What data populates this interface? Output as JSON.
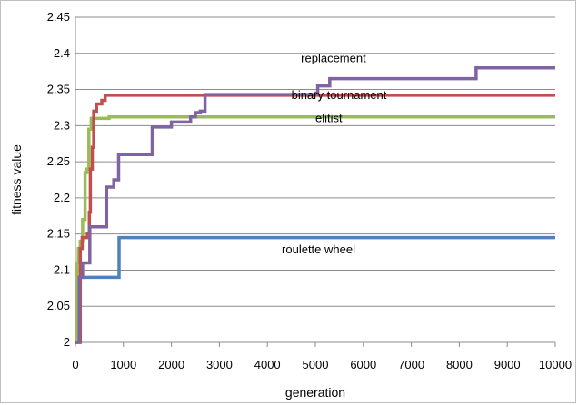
{
  "chart_data": {
    "type": "line",
    "xlabel": "generation",
    "ylabel": "fitness value",
    "xlim": [
      0,
      10000
    ],
    "ylim": [
      2,
      2.45
    ],
    "x_ticks": [
      "0",
      "1000",
      "2000",
      "3000",
      "4000",
      "5000",
      "6000",
      "7000",
      "8000",
      "9000",
      "10000"
    ],
    "y_ticks": [
      "2",
      "2.05",
      "2.1",
      "2.15",
      "2.2",
      "2.25",
      "2.3",
      "2.35",
      "2.4",
      "2.45"
    ],
    "grid": "horizontal",
    "legend": "none",
    "series": [
      {
        "name": "roulette wheel",
        "color": "#4f81bd",
        "points": [
          [
            0,
            2.0
          ],
          [
            20,
            2.09
          ],
          [
            900,
            2.09
          ],
          [
            910,
            2.145
          ],
          [
            10000,
            2.145
          ]
        ]
      },
      {
        "name": "elitist",
        "color": "#9bbb59",
        "points": [
          [
            0,
            2.0
          ],
          [
            30,
            2.11
          ],
          [
            60,
            2.13
          ],
          [
            100,
            2.14
          ],
          [
            150,
            2.17
          ],
          [
            200,
            2.235
          ],
          [
            240,
            2.24
          ],
          [
            280,
            2.295
          ],
          [
            330,
            2.31
          ],
          [
            700,
            2.312
          ],
          [
            10000,
            2.312
          ]
        ]
      },
      {
        "name": "binary tournament",
        "color": "#c0504d",
        "points": [
          [
            0,
            2.0
          ],
          [
            70,
            2.0
          ],
          [
            100,
            2.13
          ],
          [
            140,
            2.145
          ],
          [
            250,
            2.15
          ],
          [
            290,
            2.18
          ],
          [
            310,
            2.24
          ],
          [
            350,
            2.27
          ],
          [
            380,
            2.32
          ],
          [
            440,
            2.33
          ],
          [
            550,
            2.335
          ],
          [
            620,
            2.342
          ],
          [
            10000,
            2.342
          ]
        ]
      },
      {
        "name": "replacement",
        "color": "#8064a2",
        "points": [
          [
            0,
            2.0
          ],
          [
            80,
            2.09
          ],
          [
            150,
            2.11
          ],
          [
            300,
            2.16
          ],
          [
            600,
            2.16
          ],
          [
            650,
            2.215
          ],
          [
            750,
            2.215
          ],
          [
            800,
            2.225
          ],
          [
            900,
            2.26
          ],
          [
            1500,
            2.26
          ],
          [
            1600,
            2.298
          ],
          [
            1900,
            2.298
          ],
          [
            2000,
            2.305
          ],
          [
            2300,
            2.305
          ],
          [
            2400,
            2.312
          ],
          [
            2500,
            2.318
          ],
          [
            2600,
            2.32
          ],
          [
            2700,
            2.343
          ],
          [
            5000,
            2.345
          ],
          [
            5050,
            2.355
          ],
          [
            5300,
            2.365
          ],
          [
            8300,
            2.365
          ],
          [
            8350,
            2.38
          ],
          [
            10000,
            2.38
          ]
        ]
      }
    ],
    "annotations": [
      {
        "text": "replacement",
        "x": 4700,
        "y": 2.388
      },
      {
        "text": "binary tournament",
        "x": 4500,
        "y": 2.337
      },
      {
        "text": "elitist",
        "x": 5000,
        "y": 2.305
      },
      {
        "text": "roulette wheel",
        "x": 4300,
        "y": 2.123
      }
    ]
  }
}
